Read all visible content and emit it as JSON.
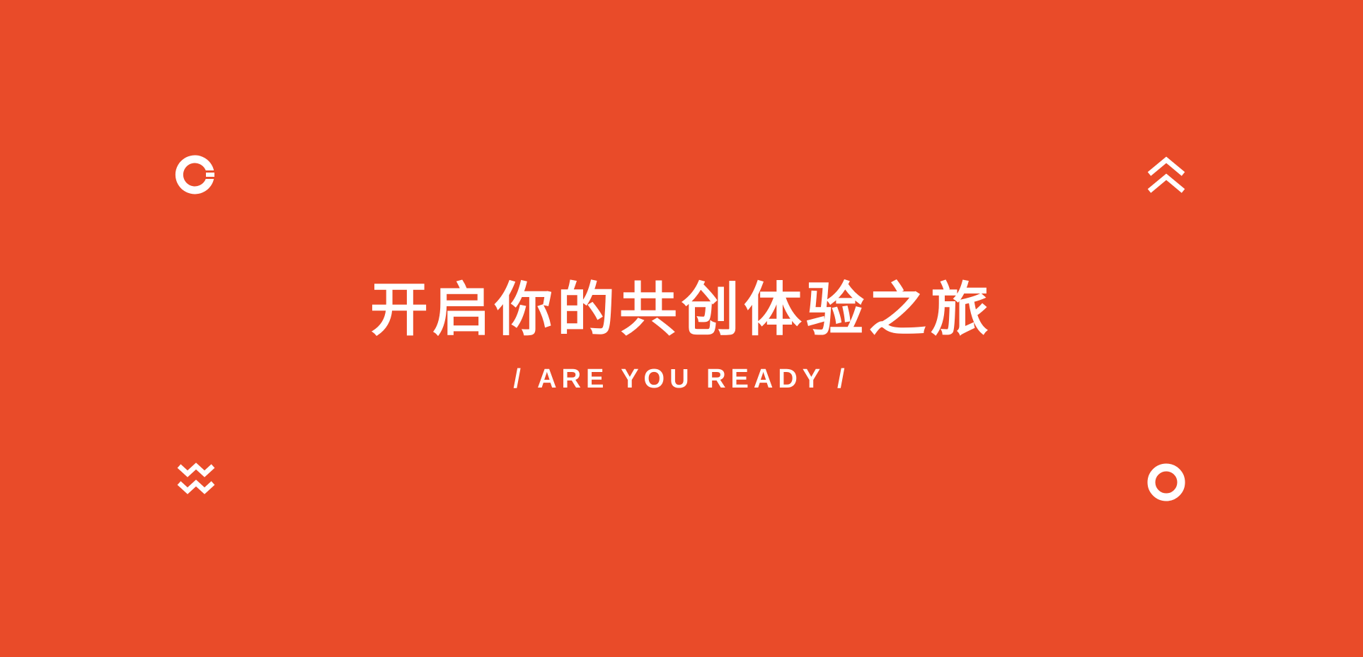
{
  "colors": {
    "background": "#E94B29",
    "foreground": "#FFFFFF"
  },
  "hero": {
    "title": "开启你的共创体验之旅",
    "subtitle": "/ ARE YOU READY /"
  },
  "decorations": {
    "top_left_icon": "open-ring-icon",
    "top_right_icon": "double-chevron-up-icon",
    "bottom_left_icon": "double-chevron-down-icon",
    "bottom_right_icon": "ring-icon"
  }
}
